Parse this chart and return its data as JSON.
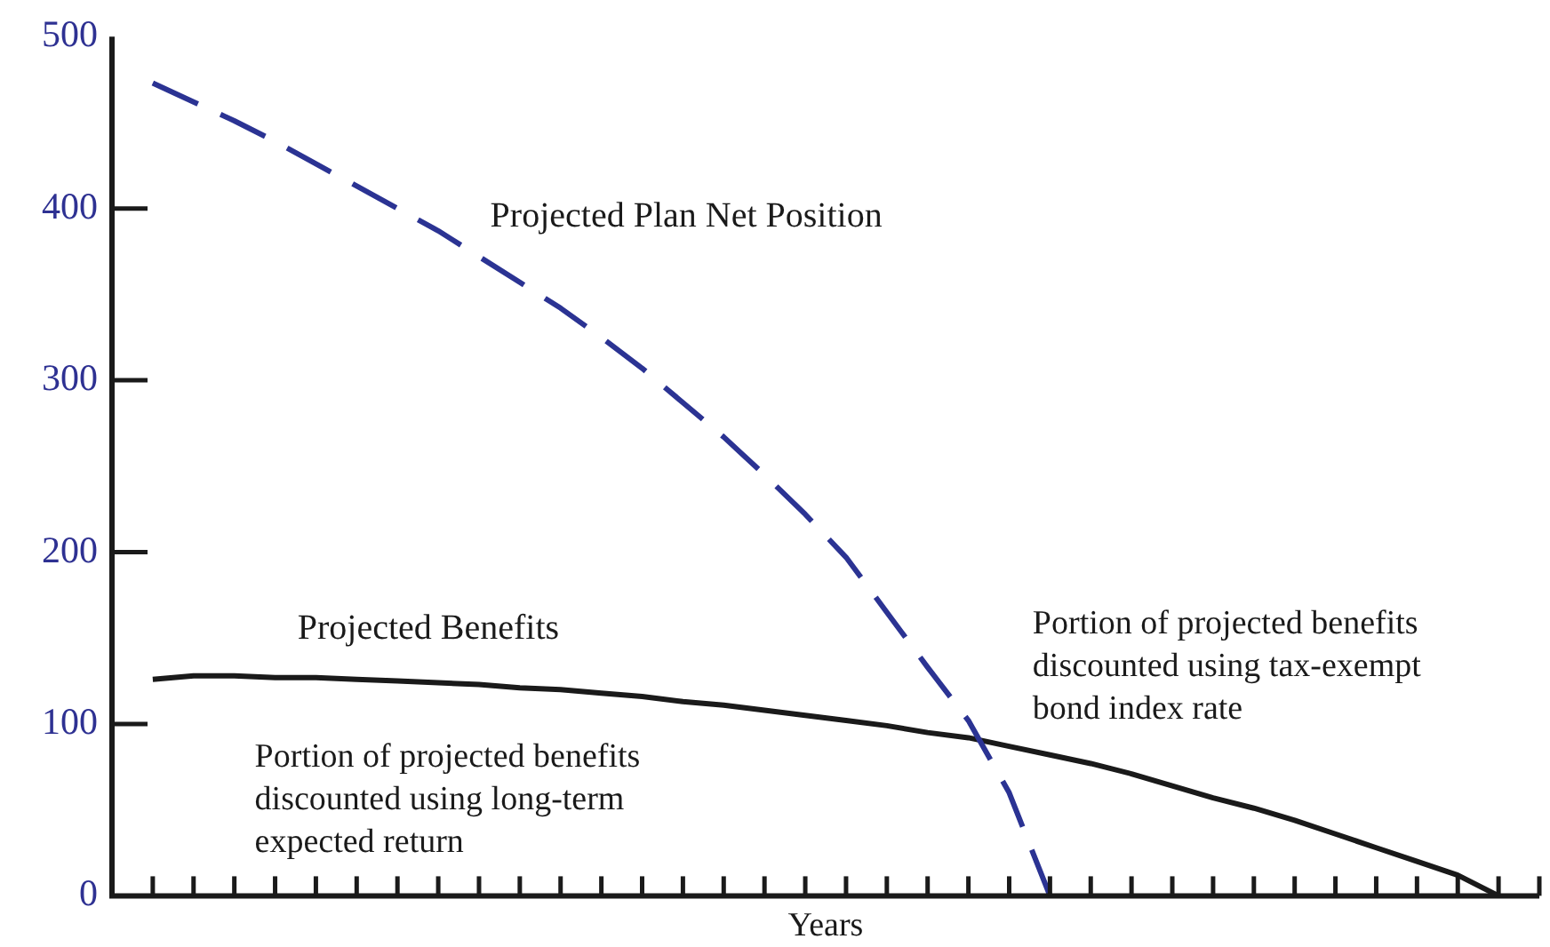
{
  "chart_data": {
    "type": "line",
    "xlabel": "Years",
    "categories": [
      null,
      null,
      null,
      null,
      null,
      null,
      null,
      null,
      null,
      null,
      null,
      null,
      null,
      null,
      null,
      null,
      null,
      null,
      null,
      null,
      null,
      null,
      null,
      null,
      null,
      null,
      null,
      null,
      null,
      null,
      null,
      null,
      null,
      null,
      null,
      null
    ],
    "ylim": [
      0,
      500
    ],
    "yticks": [
      0,
      100,
      200,
      300,
      400,
      500
    ],
    "tick_labels": "y",
    "grid": false,
    "legend": false,
    "marker": "none",
    "series": [
      {
        "name": "Projected Plan Net Position",
        "color": "#2b3393",
        "line_style": "dashed",
        "values": [
          null,
          473,
          462,
          451,
          439,
          426,
          413,
          400,
          387,
          372,
          357,
          342,
          325,
          307,
          287,
          267,
          245,
          222,
          197,
          165,
          133,
          102,
          60,
          0,
          null,
          null,
          null,
          null,
          null,
          null,
          null,
          null,
          null,
          null,
          null,
          null
        ]
      },
      {
        "name": "Projected Benefits",
        "color": "#1a1a1a",
        "line_style": "solid",
        "values": [
          null,
          126,
          128,
          128,
          127,
          127,
          126,
          125,
          124,
          123,
          121,
          120,
          118,
          116,
          113,
          111,
          108,
          105,
          102,
          99,
          95,
          92,
          87,
          82,
          77,
          71,
          64,
          57,
          51,
          44,
          36,
          28,
          20,
          12,
          0,
          null
        ]
      }
    ],
    "annotations": [
      "Portion of projected benefits discounted using long-term expected return",
      "Portion of projected benefits discounted using tax-exempt bond index rate"
    ]
  }
}
